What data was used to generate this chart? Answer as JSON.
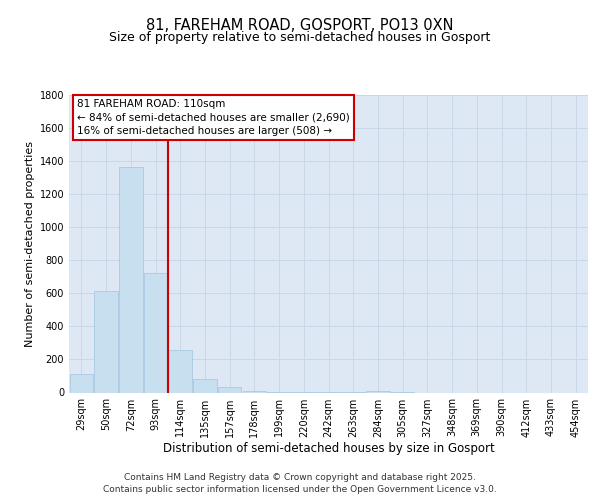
{
  "title_line1": "81, FAREHAM ROAD, GOSPORT, PO13 0XN",
  "title_line2": "Size of property relative to semi-detached houses in Gosport",
  "xlabel": "Distribution of semi-detached houses by size in Gosport",
  "ylabel": "Number of semi-detached properties",
  "categories": [
    "29sqm",
    "50sqm",
    "72sqm",
    "93sqm",
    "114sqm",
    "135sqm",
    "157sqm",
    "178sqm",
    "199sqm",
    "220sqm",
    "242sqm",
    "263sqm",
    "284sqm",
    "305sqm",
    "327sqm",
    "348sqm",
    "369sqm",
    "390sqm",
    "412sqm",
    "433sqm",
    "454sqm"
  ],
  "values": [
    110,
    615,
    1365,
    725,
    255,
    80,
    35,
    10,
    5,
    3,
    2,
    2,
    10,
    2,
    0,
    0,
    0,
    0,
    0,
    0,
    0
  ],
  "bar_color": "#c8dff0",
  "bar_edge_color": "#a0c4e0",
  "vline_color": "#cc0000",
  "vline_x": 3.5,
  "annotation_title": "81 FAREHAM ROAD: 110sqm",
  "annotation_line2": "← 84% of semi-detached houses are smaller (2,690)",
  "annotation_line3": "16% of semi-detached houses are larger (508) →",
  "annotation_box_edge": "#cc0000",
  "annotation_bg": "#ffffff",
  "ylim_max": 1800,
  "yticks": [
    0,
    200,
    400,
    600,
    800,
    1000,
    1200,
    1400,
    1600,
    1800
  ],
  "grid_color": "#c8d8e8",
  "plot_bg": "#dde8f4",
  "footer_line1": "Contains HM Land Registry data © Crown copyright and database right 2025.",
  "footer_line2": "Contains public sector information licensed under the Open Government Licence v3.0.",
  "title_fontsize": 10.5,
  "subtitle_fontsize": 9,
  "ylabel_fontsize": 8,
  "xlabel_fontsize": 8.5,
  "tick_fontsize": 7,
  "annot_fontsize": 7.5,
  "footer_fontsize": 6.5
}
